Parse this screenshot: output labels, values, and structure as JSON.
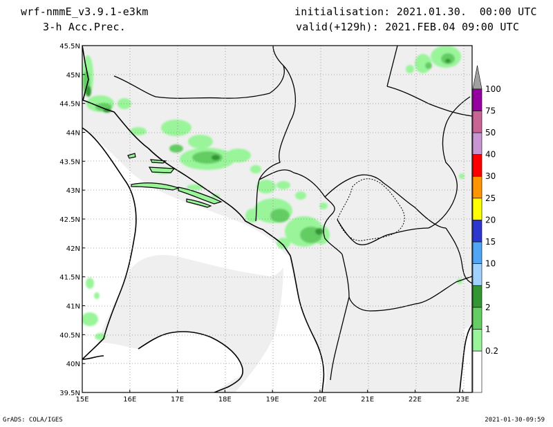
{
  "header": {
    "model": "wrf-nmmE_v3.9.1-e3km",
    "field": "3-h Acc.Prec.",
    "init": "initialisation: 2021.01.30.  00:00 UTC",
    "valid": "valid(+129h): 2021.FEB.04 09:00 UTC"
  },
  "map": {
    "lat_labels": [
      "45.5N",
      "45N",
      "44.5N",
      "44N",
      "43.5N",
      "43N",
      "42.5N",
      "42N",
      "41.5N",
      "41N",
      "40.5N",
      "40N",
      "39.5N"
    ],
    "lon_labels": [
      "15E",
      "16E",
      "17E",
      "18E",
      "19E",
      "20E",
      "21E",
      "22E",
      "23E"
    ],
    "lat_range": [
      39.5,
      45.5
    ],
    "lon_range": [
      15,
      23.2
    ],
    "grid": true,
    "land_color": "#efefef"
  },
  "legend": {
    "levels": [
      "0.2",
      "1",
      "2",
      "5",
      "10",
      "15",
      "20",
      "25",
      "30",
      "40",
      "50",
      "75",
      "100"
    ],
    "colors": [
      "#ffffff",
      "#9af59a",
      "#64cd64",
      "#329632",
      "#a0d2ff",
      "#50a5f5",
      "#2d37cd",
      "#ffff00",
      "#ff9600",
      "#ff0000",
      "#c896d2",
      "#c86496",
      "#9600a0",
      "#a0a0a0"
    ]
  },
  "footer": {
    "left": "GrADS: COLA/IGES",
    "right": "2021-01-30-09:59"
  }
}
